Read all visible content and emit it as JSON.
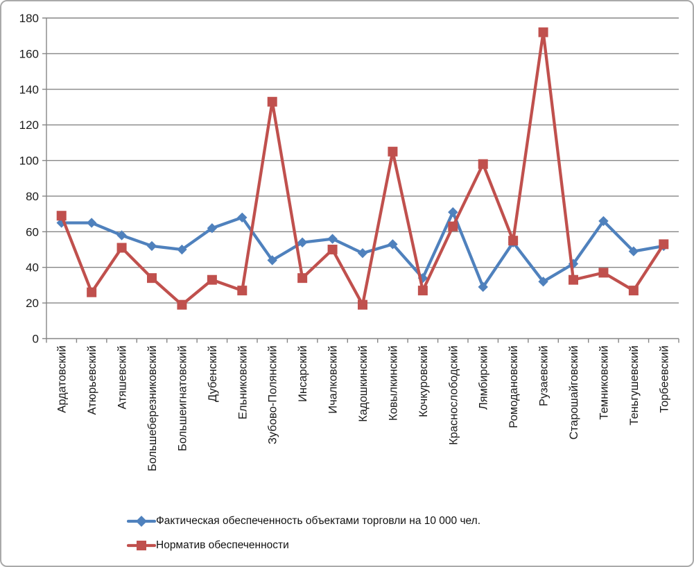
{
  "window": {
    "background": "#ffffff",
    "border_color": "#a9a9a9"
  },
  "chart_data": {
    "type": "line",
    "title": "",
    "xlabel": "",
    "ylabel": "",
    "categories": [
      "Ардатовский",
      "Атюрьевский",
      "Атяшевский",
      "Большеберезниковский",
      "Большеигнатовский",
      "Дубенский",
      "Ельниковский",
      "Зубово-Полянский",
      "Инсарский",
      "Ичалковский",
      "Кадошкинский",
      "Ковылкинский",
      "Кочкуровский",
      "Краснослободский",
      "Лямбирский",
      "Ромодановский",
      "Рузаевский",
      "Старошайговский",
      "Темниковский",
      "Теньгушевский",
      "Торбеевский"
    ],
    "series": [
      {
        "name": "Фактическая обеспеченность объектами торговли на 10 000 чел.",
        "marker": "diamond",
        "color": "#4f81bd",
        "values": [
          65,
          65,
          58,
          52,
          50,
          62,
          68,
          44,
          54,
          56,
          48,
          53,
          34,
          71,
          29,
          54,
          32,
          42,
          66,
          49,
          52
        ]
      },
      {
        "name": "Норматив обеспеченности",
        "marker": "square",
        "color": "#c0504d",
        "values": [
          69,
          26,
          51,
          34,
          19,
          33,
          27,
          133,
          34,
          50,
          19,
          105,
          27,
          63,
          98,
          55,
          172,
          33,
          37,
          27,
          53
        ]
      }
    ],
    "ylim": [
      0,
      180
    ],
    "yticks": [
      0,
      20,
      40,
      60,
      80,
      100,
      120,
      140,
      160,
      180
    ],
    "grid": true,
    "gridline_color": "#858585",
    "axis_color": "#858585",
    "text_color": "#1a1a1a",
    "legend_position": "bottom-left",
    "x_labels_rotated_90": true
  }
}
